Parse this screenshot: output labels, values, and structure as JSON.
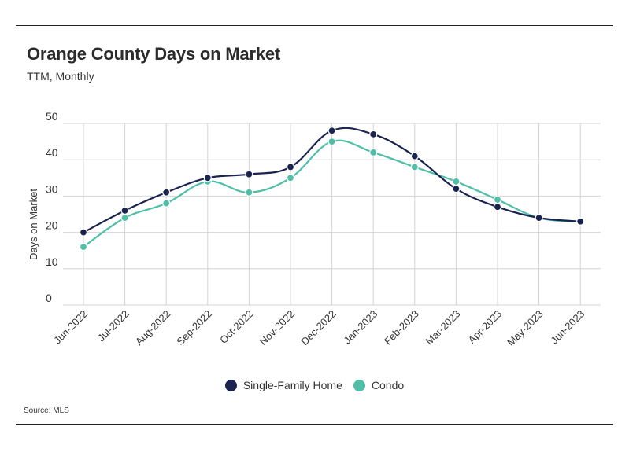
{
  "header": {
    "title": "Orange County Days on Market",
    "subtitle": "TTM, Monthly"
  },
  "source": "Source:  MLS",
  "chart_data": {
    "type": "line",
    "categories": [
      "Jun-2022",
      "Jul-2022",
      "Aug-2022",
      "Sep-2022",
      "Oct-2022",
      "Nov-2022",
      "Dec-2022",
      "Jan-2023",
      "Feb-2023",
      "Mar-2023",
      "Apr-2023",
      "May-2023",
      "Jun-2023"
    ],
    "series": [
      {
        "name": "Single-Family Home",
        "color": "#1b2451",
        "values": [
          20,
          26,
          31,
          35,
          36,
          38,
          48,
          47,
          41,
          32,
          27,
          24,
          23
        ]
      },
      {
        "name": "Condo",
        "color": "#4fbfa8",
        "values": [
          16,
          24,
          28,
          34,
          31,
          35,
          45,
          42,
          38,
          34,
          29,
          24,
          23
        ]
      }
    ],
    "ylabel": "Days on Market",
    "xlabel": "",
    "ylim": [
      0,
      50
    ],
    "yticks": [
      0,
      10,
      20,
      30,
      40,
      50
    ],
    "grid": true,
    "legend_position": "bottom-center"
  }
}
